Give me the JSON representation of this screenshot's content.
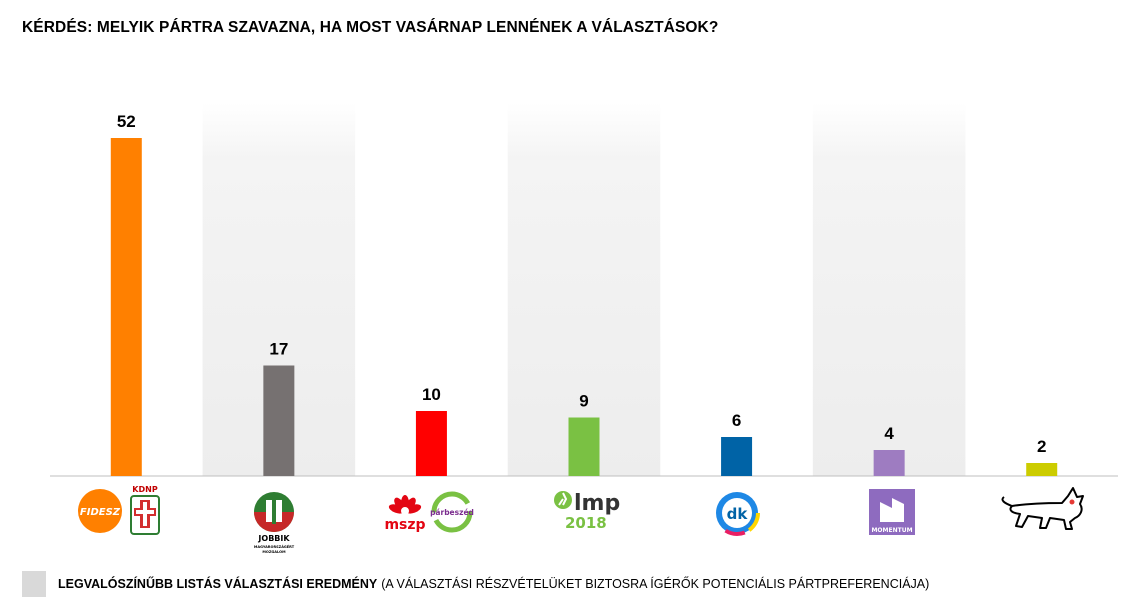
{
  "title": "KÉRDÉS: MELYIK PÁRTRA SZAVAZNA, HA MOST VASÁRNAP LENNÉNEK A VÁLASZTÁSOK?",
  "chart_data": {
    "type": "bar",
    "title": "KÉRDÉS: MELYIK PÁRTRA SZAVAZNA, HA MOST VASÁRNAP LENNÉNEK A VÁLASZTÁSOK?",
    "categories": [
      "Fidesz-KDNP",
      "Jobbik",
      "MSZP-Párbeszéd",
      "LMP",
      "DK",
      "Momentum",
      "MKKP"
    ],
    "values": [
      52,
      17,
      10,
      9,
      6,
      4,
      2
    ],
    "colors": [
      "#ff8000",
      "#767171",
      "#ff0000",
      "#7ac143",
      "#0063a6",
      "#9e7cc1",
      "#cccc00"
    ],
    "shaded_columns": [
      1,
      3,
      5
    ],
    "ylim": [
      0,
      56
    ],
    "grid": false,
    "legend_placement": "bottom-left",
    "legend": {
      "label": "LEGVALÓSZÍNŰBB LISTÁS VÁLASZTÁSI EREDMÉNY",
      "note": "(A VÁLASZTÁSI RÉSZVÉTELÜKET BIZTOSRA ÍGÉRŐK POTENCIÁLIS PÁRTPREFERENCIÁJA)",
      "color": "#d9d9d9"
    }
  },
  "logos": {
    "fidesz": "FIDESZ",
    "kdnp": "KDNP",
    "jobbik": "JOBBIK",
    "jobbik_sub1": "MAGYARORSZÁGÉRT",
    "jobbik_sub2": "MOZGALOM",
    "mszp": "mszp",
    "parbeszed": "párbeszéd",
    "lmp": "lmp",
    "lmp_year": "2018",
    "dk": "dk",
    "momentum": "MOMENTUM"
  },
  "icons": [
    "fidesz-logo",
    "kdnp-logo",
    "jobbik-logo",
    "mszp-logo",
    "parbeszed-logo",
    "lmp-logo",
    "dk-logo",
    "momentum-logo",
    "mkkp-dog-logo"
  ]
}
